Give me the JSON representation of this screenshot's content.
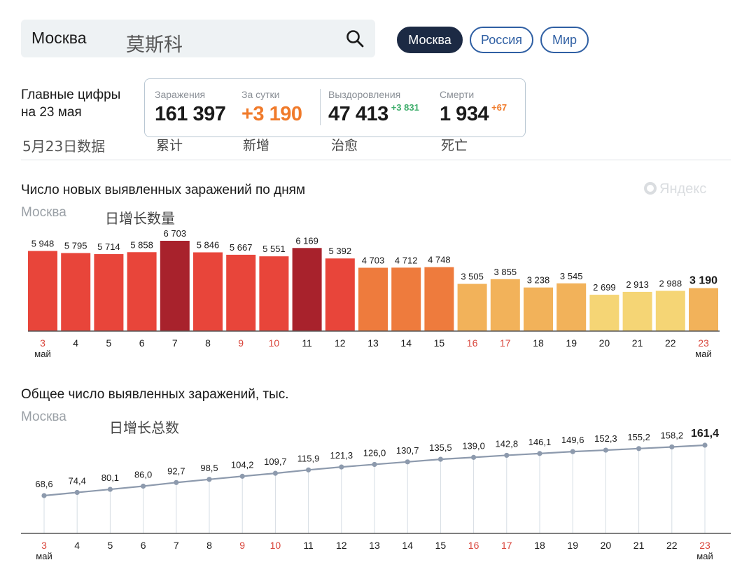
{
  "search": {
    "query": "Москва",
    "annotation": "莫斯科"
  },
  "tabs": [
    {
      "label": "Москва",
      "active": true
    },
    {
      "label": "Россия",
      "active": false
    },
    {
      "label": "Мир",
      "active": false
    }
  ],
  "summary": {
    "heading_line1": "Главные цифры",
    "heading_line2": "на 23 мая",
    "date_note": "5月23日数据",
    "stats": [
      {
        "label": "Заражения",
        "value": "161 397",
        "delta": "",
        "note": "累计",
        "color": "#1a1a1a"
      },
      {
        "label": "За сутки",
        "value": "+3 190",
        "delta": "",
        "note": "新增",
        "color": "#f07a2a"
      },
      {
        "label": "Выздоровления",
        "value": "47 413",
        "delta": "+3 831",
        "note": "治愈",
        "color": "#1a1a1a",
        "delta_color": "#3fae6c"
      },
      {
        "label": "Смерти",
        "value": "1 934",
        "delta": "+67",
        "note": "死亡",
        "color": "#1a1a1a",
        "delta_color": "#f07a2a"
      }
    ]
  },
  "brand": {
    "name": "Яндекс"
  },
  "chart_data": [
    {
      "type": "bar",
      "title": "Число новых выявленных заражений по дням",
      "subtitle": "Москва",
      "annotation": "日增长数量",
      "categories": [
        "3",
        "4",
        "5",
        "6",
        "7",
        "8",
        "9",
        "10",
        "11",
        "12",
        "13",
        "14",
        "15",
        "16",
        "17",
        "18",
        "19",
        "20",
        "21",
        "22",
        "23"
      ],
      "month_label": "май",
      "values": [
        5948,
        5795,
        5714,
        5858,
        6703,
        5846,
        5667,
        5551,
        6169,
        5392,
        4703,
        4712,
        4748,
        3505,
        3855,
        3238,
        3545,
        2699,
        2913,
        2988,
        3190
      ],
      "value_labels": [
        "5 948",
        "5 795",
        "5 714",
        "5 858",
        "6 703",
        "5 846",
        "5 667",
        "5 551",
        "6 169",
        "5 392",
        "4 703",
        "4 712",
        "4 748",
        "3 505",
        "3 855",
        "3 238",
        "3 545",
        "2 699",
        "2 913",
        "2 988",
        "3 190"
      ],
      "weekend_categories": [
        "3",
        "9",
        "10",
        "16",
        "17",
        "23"
      ],
      "ylim": [
        0,
        6703
      ],
      "grid": false,
      "colors": {
        "tier_highest": "#a8222c",
        "tier_high": "#d63a2f",
        "tier_mid": "#e8453a",
        "tier_orange": "#ee7b3d",
        "tier_light": "#f2b25a",
        "tier_pale": "#f5d575",
        "weekend_label": "#d9463c",
        "axis": "#555555"
      }
    },
    {
      "type": "line",
      "title": "Общее число выявленных заражений, тыс.",
      "subtitle": "Москва",
      "annotation": "日增长总数",
      "categories": [
        "3",
        "4",
        "5",
        "6",
        "7",
        "8",
        "9",
        "10",
        "11",
        "12",
        "13",
        "14",
        "15",
        "16",
        "17",
        "18",
        "19",
        "20",
        "21",
        "22",
        "23"
      ],
      "month_label": "май",
      "values": [
        68.6,
        74.4,
        80.1,
        86.0,
        92.7,
        98.5,
        104.2,
        109.7,
        115.9,
        121.3,
        126.0,
        130.7,
        135.5,
        139.0,
        142.8,
        146.1,
        149.6,
        152.3,
        155.2,
        158.2,
        161.4
      ],
      "value_labels": [
        "68,6",
        "74,4",
        "80,1",
        "86,0",
        "92,7",
        "98,5",
        "104,2",
        "109,7",
        "115,9",
        "121,3",
        "126,0",
        "130,7",
        "135,5",
        "139,0",
        "142,8",
        "146,1",
        "149,6",
        "152,3",
        "155,2",
        "158,2",
        "161,4"
      ],
      "weekend_categories": [
        "3",
        "9",
        "10",
        "16",
        "17",
        "23"
      ],
      "ylim": [
        0,
        170
      ],
      "grid": false,
      "colors": {
        "line": "#8d9aad",
        "drop_lines": "#d6dde4",
        "weekend_label": "#d9463c"
      }
    }
  ]
}
